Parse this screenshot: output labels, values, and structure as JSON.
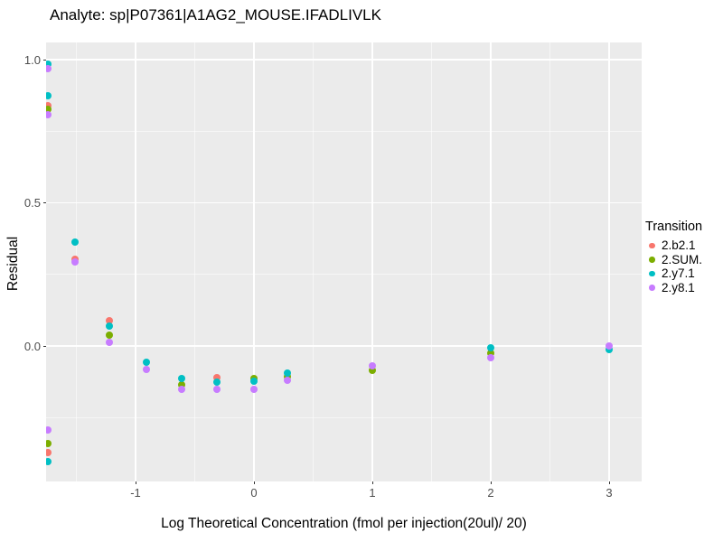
{
  "title": "Analyte: sp|P07361|A1AG2_MOUSE.IFADLIVLK",
  "chart_data": {
    "type": "scatter",
    "title": "Analyte: sp|P07361|A1AG2_MOUSE.IFADLIVLK",
    "xlabel": "Log Theoretical Concentration (fmol per injection(20ul)/ 20)",
    "ylabel": "Residual",
    "xlim": [
      -1.98,
      3.27
    ],
    "ylim": [
      -0.47,
      1.06
    ],
    "grid": true,
    "panel_bg": "#EBEBEB",
    "gridline_color": "#FFFFFF",
    "x_major_ticks": [
      -1,
      0,
      1,
      2,
      3
    ],
    "x_tick_labels": [
      "-1",
      "0",
      "1",
      "2",
      "3"
    ],
    "x_minor_ticks": [
      -1.5,
      -0.5,
      0.5,
      1.5,
      2.5
    ],
    "y_major_ticks": [
      1.0,
      0.5,
      0.0
    ],
    "y_tick_labels": [
      "1.0",
      "0.5",
      "0.0"
    ],
    "y_minor_ticks": [
      0.75,
      0.25,
      -0.25
    ],
    "legend": {
      "title": "Transition",
      "position": "right",
      "entries": [
        {
          "label": "2.b2.1",
          "color": "#F8766D"
        },
        {
          "label": "2.SUM.",
          "color": "#7CAE00"
        },
        {
          "label": "2.y7.1",
          "color": "#00BFC4"
        },
        {
          "label": "2.y8.1",
          "color": "#C77CFF"
        }
      ]
    },
    "series": [
      {
        "name": "2.b2.1",
        "color": "#F8766D",
        "points": [
          [
            -1.74,
            0.84
          ],
          [
            -1.74,
            -0.372
          ],
          [
            -1.51,
            0.303
          ],
          [
            -1.22,
            0.088
          ],
          [
            -0.31,
            -0.11
          ]
        ]
      },
      {
        "name": "2.SUM.",
        "color": "#7CAE00",
        "points": [
          [
            -1.74,
            0.825
          ],
          [
            -1.74,
            -0.341
          ],
          [
            -1.22,
            0.038
          ],
          [
            -0.61,
            -0.135
          ],
          [
            0.0,
            -0.113
          ],
          [
            0.28,
            -0.108
          ],
          [
            1.0,
            -0.085
          ],
          [
            2.0,
            -0.024
          ]
        ]
      },
      {
        "name": "2.y7.1",
        "color": "#00BFC4",
        "points": [
          [
            -1.74,
            0.985
          ],
          [
            -1.74,
            0.874
          ],
          [
            -1.74,
            -0.404
          ],
          [
            -1.51,
            0.363
          ],
          [
            -1.22,
            0.07
          ],
          [
            -0.91,
            -0.057
          ],
          [
            -0.61,
            -0.114
          ],
          [
            -0.31,
            -0.126
          ],
          [
            0.0,
            -0.123
          ],
          [
            0.28,
            -0.095
          ],
          [
            2.0,
            -0.006
          ],
          [
            3.0,
            -0.014
          ]
        ]
      },
      {
        "name": "2.y8.1",
        "color": "#C77CFF",
        "points": [
          [
            -1.74,
            0.968
          ],
          [
            -1.74,
            0.808
          ],
          [
            -1.74,
            -0.293
          ],
          [
            -1.51,
            0.292
          ],
          [
            -1.22,
            0.012
          ],
          [
            -0.91,
            -0.082
          ],
          [
            -0.61,
            -0.151
          ],
          [
            -0.31,
            -0.151
          ],
          [
            0.0,
            -0.151
          ],
          [
            0.28,
            -0.121
          ],
          [
            1.0,
            -0.069
          ],
          [
            2.0,
            -0.04
          ],
          [
            3.0,
            -0.001
          ]
        ]
      }
    ]
  }
}
